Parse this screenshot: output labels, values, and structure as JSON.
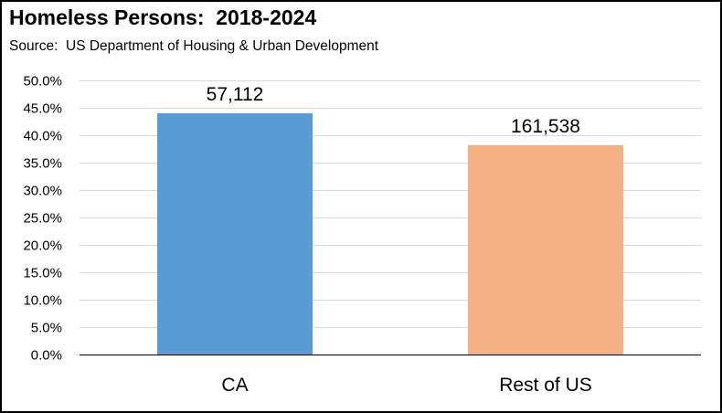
{
  "title": "Homeless Persons:  2018-2024",
  "subtitle": "Source:  US Department of Housing & Urban Development",
  "chart_data": {
    "type": "bar",
    "categories": [
      "CA",
      "Rest of US"
    ],
    "values": [
      44.0,
      38.2
    ],
    "data_labels": [
      "57,112",
      "161,538"
    ],
    "colors": [
      "#5b9bd5",
      "#f4b183"
    ],
    "ylim": [
      0,
      50
    ],
    "ytick_step": 5,
    "ytick_format": "percent-1dp",
    "grid": true,
    "legend": "none",
    "xlabel": "",
    "ylabel": ""
  }
}
